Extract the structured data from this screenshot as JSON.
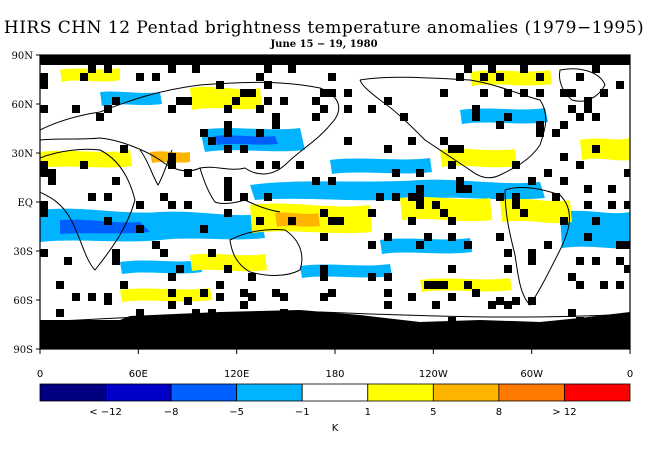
{
  "title": "HIRS CHN 12 Pentad brightness temperature anomalies (1979−1995)",
  "subtitle": "June 15 − 19, 1980",
  "lat_labels": [
    "90N",
    "60N",
    "30N",
    "EQ",
    "30S",
    "60S",
    "90S"
  ],
  "lon_labels": [
    "0",
    "60E",
    "120E",
    "180",
    "120W",
    "60W",
    "0"
  ],
  "colorbar": {
    "unit": "K",
    "labels": [
      "< −12",
      "−8",
      "−5",
      "−1",
      "1",
      "5",
      "8",
      "> 12"
    ],
    "colors": [
      "#000080",
      "#0000c8",
      "#0060ff",
      "#00b4ff",
      "#ffffff",
      "#ffff00",
      "#ffb400",
      "#ff7800",
      "#ff0000"
    ]
  },
  "map_colors": {
    "missing": "#000000",
    "ocean_background": "#ffffff",
    "coastline": "#000000"
  }
}
